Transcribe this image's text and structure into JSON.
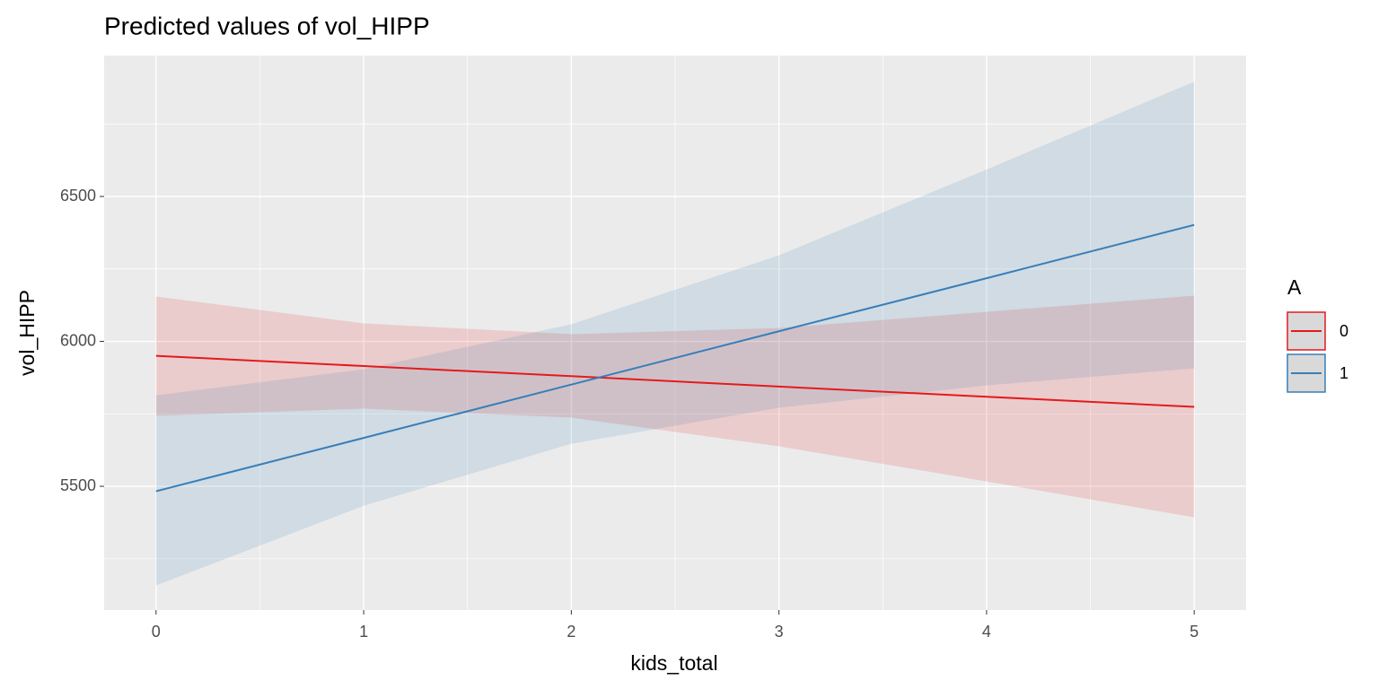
{
  "chart_data": {
    "type": "line",
    "title": "Predicted values of vol_HIPP",
    "x_label": "kids_total",
    "y_label": "vol_HIPP",
    "x": [
      0,
      1,
      2,
      3,
      4,
      5
    ],
    "xlim": [
      -0.25,
      5.25
    ],
    "xticks": [
      0,
      1,
      2,
      3,
      4,
      5
    ],
    "ylim": [
      5073,
      6986
    ],
    "yticks": [
      5500,
      6000,
      6500
    ],
    "grid": true,
    "legend_title": "A",
    "legend_position": "right",
    "series": [
      {
        "name": "0",
        "color": "#e41a1c",
        "values": [
          5950,
          5915,
          5880,
          5844,
          5809,
          5774
        ],
        "lower": [
          5743,
          5768,
          5737,
          5638,
          5517,
          5393
        ],
        "upper": [
          6155,
          6062,
          6025,
          6046,
          6102,
          6158
        ]
      },
      {
        "name": "1",
        "color": "#377eb8",
        "values": [
          5483,
          5667,
          5851,
          6035,
          6218,
          6402
        ],
        "lower": [
          5158,
          5433,
          5647,
          5771,
          5848,
          5907
        ],
        "upper": [
          5814,
          5904,
          6059,
          6297,
          6593,
          6896
        ]
      }
    ]
  }
}
